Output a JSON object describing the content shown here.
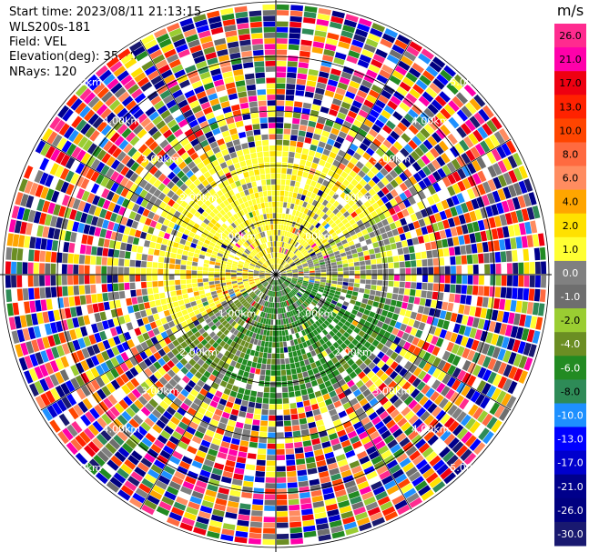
{
  "header": {
    "start_time": "Start time: 2023/08/11 21:13:15",
    "instrument": "WLS200s-181",
    "field": "Field: VEL",
    "elevation": "Elevation(deg): 35.30",
    "nrays": "NRays: 120"
  },
  "chart_data": {
    "type": "heatmap",
    "projection": "polar-ppi",
    "field": "VEL",
    "unit": "m/s",
    "n_rays": 120,
    "range_ring_labels": [
      "1.00km",
      "2.00km",
      "3.00km",
      "4.00km",
      "5.00km"
    ],
    "colorbar": {
      "unit": "m/s",
      "ticks": [
        "26.0",
        "21.0",
        "17.0",
        "13.0",
        "10.0",
        "8.0",
        "6.0",
        "4.0",
        "2.0",
        "1.0",
        "0.0",
        "-1.0",
        "-2.0",
        "-4.0",
        "-6.0",
        "-8.0",
        "-10.0",
        "-13.0",
        "-17.0",
        "-21.0",
        "-26.0",
        "-30.0"
      ],
      "colors": [
        "#ff2b8f",
        "#ff00aa",
        "#ee0011",
        "#ff2200",
        "#ff4500",
        "#ff6a40",
        "#ff8c60",
        "#ffa500",
        "#ffe100",
        "#ffff33",
        "#808080",
        "#6e6e6e",
        "#9acd32",
        "#6b8e23",
        "#228b22",
        "#2e8b57",
        "#1e90ff",
        "#0000ff",
        "#0000cd",
        "#00008b",
        "#000080",
        "#191970"
      ]
    }
  }
}
